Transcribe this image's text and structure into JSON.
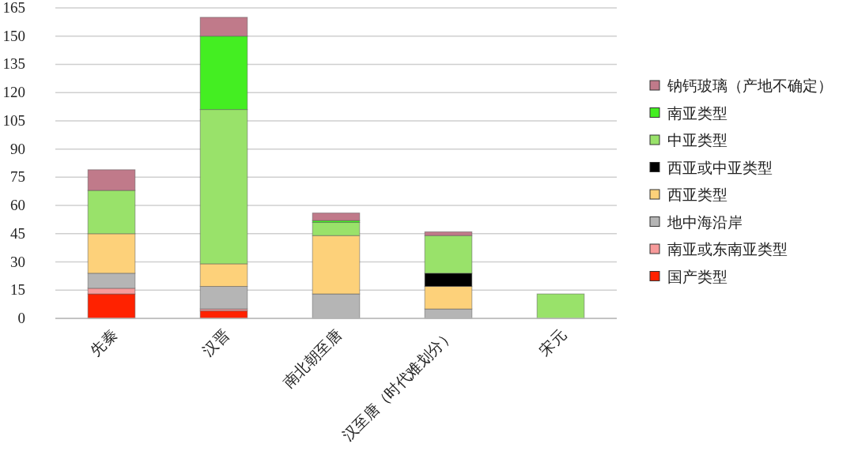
{
  "chart_data": {
    "type": "bar",
    "stacked": true,
    "categories": [
      "先秦",
      "汉晋",
      "南北朝至唐",
      "汉至唐（时代难划分）",
      "宋元"
    ],
    "series": [
      {
        "name": "国产类型",
        "color": "#ff2200",
        "values": [
          13,
          4,
          null,
          null,
          null
        ]
      },
      {
        "name": "南亚或东南亚类型",
        "color": "#f79a9a",
        "values": [
          3,
          1,
          null,
          null,
          null
        ]
      },
      {
        "name": "地中海沿岸",
        "color": "#b5b5b5",
        "values": [
          8,
          12,
          13,
          5,
          null
        ]
      },
      {
        "name": "西亚类型",
        "color": "#fdd17a",
        "values": [
          21,
          12,
          31,
          12,
          null
        ]
      },
      {
        "name": "西亚或中亚类型",
        "color": "#000000",
        "values": [
          null,
          null,
          null,
          7,
          null
        ]
      },
      {
        "name": "中亚类型",
        "color": "#99e26a",
        "values": [
          23,
          82,
          7,
          20,
          13
        ]
      },
      {
        "name": "南亚类型",
        "color": "#44ee22",
        "values": [
          null,
          39,
          1,
          null,
          null
        ]
      },
      {
        "name": "钠钙玻璃（产地不确定）",
        "color": "#c07a8a",
        "values": [
          11,
          10,
          4,
          2,
          null
        ]
      }
    ],
    "ylim": [
      0,
      165
    ],
    "yticks": [
      0,
      15,
      30,
      45,
      60,
      75,
      90,
      105,
      120,
      135,
      150,
      165
    ],
    "grid": "y",
    "legend": "right"
  }
}
